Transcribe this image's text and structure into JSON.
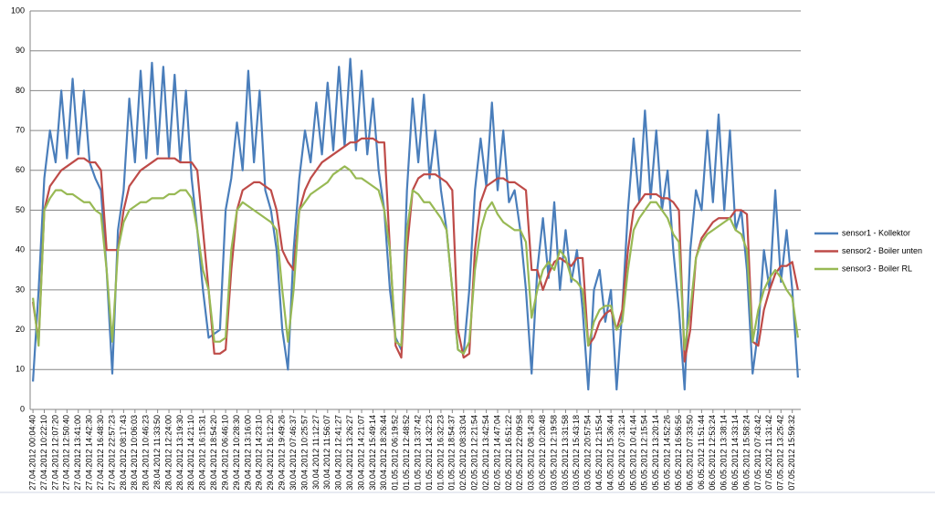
{
  "chart_data": {
    "type": "line",
    "categories": [
      "27.04.2012 00:04:40",
      null,
      "27.04.2012 10:22:10",
      null,
      "27.04.2012 12:07:20",
      null,
      "27.04.2012 12:50:40",
      null,
      "27.04.2012 13:41:00",
      null,
      "27.04.2012 14:42:30",
      null,
      "27.04.2012 16:48:30",
      null,
      "27.04.2012 22:57:23",
      null,
      "28.04.2012 08:17:43",
      null,
      "28.04.2012 10:06:03",
      null,
      "28.04.2012 10:46:23",
      null,
      "28.04.2012 11:33:50",
      null,
      "28.04.2012 12:24:00",
      null,
      "28.04.2012 13:19:30",
      null,
      "28.04.2012 14:21:10",
      null,
      "28.04.2012 16:15:31",
      null,
      "28.04.2012 18:54:20",
      null,
      "29.04.2012 06:46:10",
      null,
      "29.04.2012 10:28:30",
      null,
      "29.04.2012 13:16:00",
      null,
      "29.04.2012 14:23:10",
      null,
      "29.04.2012 16:12:20",
      null,
      "29.04.2012 19:49:26",
      null,
      "30.04.2012 07:46:37",
      null,
      "30.04.2012 10:25:57",
      null,
      "30.04.2012 11:12:27",
      null,
      "30.04.2012 11:56:07",
      null,
      "30.04.2012 12:41:27",
      null,
      "30.04.2012 13:26:27",
      null,
      "30.04.2012 14:21:07",
      null,
      "30.04.2012 15:49:14",
      null,
      "30.04.2012 18:26:44",
      null,
      "01.05.2012 06:19:52",
      null,
      "01.05.2012 12:48:52",
      null,
      "01.05.2012 13:37:42",
      null,
      "01.05.2012 14:32:23",
      null,
      "01.05.2012 16:32:23",
      null,
      "01.05.2012 18:54:37",
      null,
      "02.05.2012 08:33:04",
      null,
      "02.05.2012 12:21:54",
      null,
      "02.05.2012 13:42:54",
      null,
      "02.05.2012 14:47:04",
      null,
      "02.05.2012 16:51:22",
      null,
      "02.05.2012 22:09:58",
      null,
      "03.05.2012 08:14:28",
      null,
      "03.05.2012 10:20:48",
      null,
      "03.05.2012 12:19:58",
      null,
      "03.05.2012 13:31:58",
      null,
      "03.05.2012 15:43:18",
      null,
      "03.05.2012 20:57:54",
      null,
      "04.05.2012 12:15:54",
      null,
      "04.05.2012 15:36:44",
      null,
      "05.05.2012 07:31:24",
      null,
      "05.05.2012 10:41:44",
      null,
      "05.05.2012 12:15:54",
      null,
      "05.05.2012 13:20:14",
      null,
      "05.05.2012 14:52:26",
      null,
      "05.05.2012 16:56:56",
      null,
      "06.05.2012 07:33:50",
      null,
      "06.05.2012 11:51:44",
      null,
      "06.05.2012 12:53:24",
      null,
      "06.05.2012 13:38:14",
      null,
      "06.05.2012 14:33:14",
      null,
      "06.05.2012 15:58:24",
      null,
      "07.05.2012 07:43:42",
      null,
      "07.05.2012 11:31:42",
      null,
      "07.05.2012 13:25:42",
      null,
      "07.05.2012 15:59:32",
      null
    ],
    "series": [
      {
        "name": "sensor1 - Kollektor",
        "color": "#4a7ebb",
        "values": [
          7,
          30,
          58,
          70,
          62,
          80,
          63,
          83,
          64,
          80,
          62,
          58,
          55,
          35,
          9,
          45,
          55,
          78,
          62,
          85,
          63,
          87,
          64,
          86,
          63,
          84,
          62,
          80,
          58,
          45,
          30,
          18,
          19,
          20,
          50,
          58,
          72,
          60,
          85,
          62,
          80,
          55,
          50,
          40,
          20,
          10,
          40,
          58,
          70,
          62,
          77,
          64,
          82,
          65,
          86,
          66,
          88,
          65,
          85,
          64,
          78,
          60,
          50,
          30,
          18,
          15,
          55,
          78,
          62,
          79,
          58,
          70,
          55,
          45,
          30,
          15,
          14,
          30,
          55,
          68,
          56,
          77,
          55,
          70,
          52,
          55,
          45,
          30,
          9,
          35,
          48,
          33,
          52,
          30,
          45,
          32,
          40,
          25,
          5,
          30,
          35,
          22,
          30,
          5,
          25,
          50,
          68,
          52,
          75,
          53,
          70,
          50,
          60,
          40,
          25,
          5,
          40,
          55,
          50,
          70,
          52,
          74,
          50,
          70,
          45,
          50,
          35,
          9,
          20,
          40,
          30,
          55,
          32,
          45,
          30,
          8
        ]
      },
      {
        "name": "sensor2 - Boiler unten",
        "color": "#be4b48",
        "values": [
          27,
          17,
          50,
          56,
          58,
          60,
          61,
          62,
          63,
          63,
          62,
          62,
          60,
          40,
          40,
          40,
          50,
          56,
          58,
          60,
          61,
          62,
          63,
          63,
          63,
          63,
          62,
          62,
          62,
          60,
          45,
          30,
          14,
          14,
          15,
          35,
          50,
          55,
          56,
          57,
          57,
          56,
          55,
          50,
          40,
          37,
          35,
          50,
          55,
          58,
          60,
          62,
          63,
          64,
          65,
          66,
          67,
          67,
          68,
          68,
          68,
          67,
          67,
          40,
          16,
          13,
          40,
          55,
          58,
          59,
          59,
          59,
          58,
          57,
          55,
          20,
          13,
          14,
          40,
          52,
          56,
          57,
          58,
          58,
          57,
          57,
          56,
          55,
          35,
          35,
          30,
          34,
          37,
          38,
          37,
          36,
          38,
          38,
          16,
          18,
          22,
          24,
          25,
          20,
          25,
          40,
          50,
          52,
          54,
          54,
          54,
          53,
          53,
          52,
          50,
          12,
          20,
          38,
          43,
          45,
          47,
          48,
          48,
          48,
          50,
          50,
          49,
          17,
          16,
          25,
          30,
          34,
          36,
          36,
          37,
          30
        ]
      },
      {
        "name": "sensor3 - Boiler RL",
        "color": "#98b954",
        "values": [
          28,
          16,
          50,
          53,
          55,
          55,
          54,
          54,
          53,
          52,
          52,
          50,
          49,
          35,
          17,
          40,
          47,
          50,
          51,
          52,
          52,
          53,
          53,
          53,
          54,
          54,
          55,
          55,
          53,
          45,
          35,
          30,
          17,
          17,
          18,
          40,
          50,
          52,
          51,
          50,
          49,
          48,
          47,
          45,
          30,
          17,
          30,
          50,
          52,
          54,
          55,
          56,
          57,
          59,
          60,
          61,
          60,
          58,
          58,
          57,
          56,
          55,
          50,
          40,
          17,
          16,
          45,
          55,
          54,
          52,
          52,
          50,
          48,
          45,
          30,
          15,
          14,
          17,
          35,
          45,
          50,
          52,
          49,
          47,
          46,
          45,
          45,
          42,
          23,
          30,
          35,
          37,
          35,
          40,
          38,
          33,
          32,
          30,
          16,
          22,
          25,
          26,
          26,
          20,
          22,
          35,
          45,
          48,
          50,
          52,
          52,
          50,
          48,
          44,
          42,
          15,
          25,
          38,
          42,
          44,
          45,
          46,
          47,
          48,
          45,
          44,
          40,
          17,
          25,
          30,
          33,
          35,
          33,
          30,
          28,
          18
        ]
      }
    ],
    "ylim": [
      0,
      100
    ],
    "yticks": [
      0,
      10,
      20,
      30,
      40,
      50,
      60,
      70,
      80,
      90,
      100
    ],
    "grid": true,
    "legend": "right"
  }
}
